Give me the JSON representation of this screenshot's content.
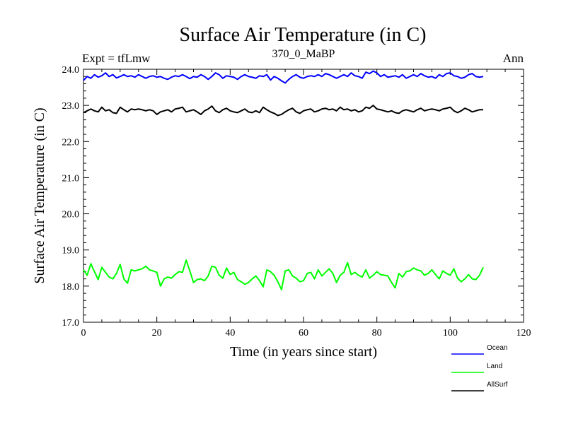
{
  "chart_data": {
    "type": "line",
    "title": "Surface Air Temperature (in C)",
    "subtitle": "370_0_MaBP",
    "expt_label": "Expt = tfLmw",
    "period_label": "Ann",
    "xlabel": "Time (in years since start)",
    "ylabel": "Surface Air Temperature (in C)",
    "xlim": [
      0,
      120
    ],
    "ylim": [
      17.0,
      24.0
    ],
    "x_ticks": [
      0,
      20,
      40,
      60,
      80,
      100,
      120
    ],
    "y_ticks": [
      17.0,
      18.0,
      19.0,
      20.0,
      21.0,
      22.0,
      23.0,
      24.0
    ],
    "x_tick_labels": [
      "0",
      "20",
      "40",
      "60",
      "80",
      "100",
      "120"
    ],
    "y_tick_labels": [
      "17.0",
      "18.0",
      "19.0",
      "20.0",
      "21.0",
      "22.0",
      "23.0",
      "24.0"
    ],
    "grid": false,
    "legend_position": "bottom-right",
    "series": [
      {
        "name": "Ocean",
        "color": "#0000ff",
        "values": [
          23.69,
          23.8,
          23.75,
          23.85,
          23.78,
          23.82,
          23.9,
          23.8,
          23.85,
          23.76,
          23.8,
          23.85,
          23.8,
          23.82,
          23.78,
          23.85,
          23.8,
          23.75,
          23.8,
          23.82,
          23.78,
          23.8,
          23.75,
          23.72,
          23.78,
          23.82,
          23.8,
          23.85,
          23.8,
          23.74,
          23.8,
          23.78,
          23.85,
          23.8,
          23.72,
          23.8,
          23.9,
          23.85,
          23.75,
          23.82,
          23.8,
          23.78,
          23.72,
          23.8,
          23.85,
          23.8,
          23.78,
          23.75,
          23.82,
          23.8,
          23.85,
          23.7,
          23.8,
          23.75,
          23.68,
          23.62,
          23.72,
          23.8,
          23.85,
          23.78,
          23.75,
          23.8,
          23.82,
          23.8,
          23.85,
          23.8,
          23.88,
          23.85,
          23.8,
          23.75,
          23.8,
          23.85,
          23.8,
          23.9,
          23.82,
          23.8,
          23.75,
          23.92,
          23.88,
          23.95,
          23.9,
          23.8,
          23.85,
          23.78,
          23.8,
          23.82,
          23.78,
          23.85,
          23.75,
          23.8,
          23.85,
          23.8,
          23.88,
          23.82,
          23.78,
          23.8,
          23.75,
          23.85,
          23.8,
          23.88,
          23.9,
          23.82,
          23.8,
          23.75,
          23.78,
          23.85,
          23.88,
          23.8,
          23.78,
          23.8
        ]
      },
      {
        "name": "Land",
        "color": "#00ff00",
        "values": [
          18.45,
          18.3,
          18.62,
          18.4,
          18.18,
          18.52,
          18.38,
          18.25,
          18.2,
          18.35,
          18.6,
          18.2,
          18.08,
          18.45,
          18.42,
          18.45,
          18.48,
          18.55,
          18.45,
          18.42,
          18.38,
          18.0,
          18.2,
          18.25,
          18.22,
          18.32,
          18.4,
          18.38,
          18.72,
          18.42,
          18.1,
          18.18,
          18.2,
          18.15,
          18.28,
          18.55,
          18.52,
          18.3,
          18.22,
          18.5,
          18.32,
          18.38,
          18.18,
          18.12,
          18.05,
          18.1,
          18.2,
          18.28,
          18.15,
          17.98,
          18.45,
          18.4,
          18.3,
          18.12,
          17.9,
          18.42,
          18.45,
          18.28,
          18.22,
          18.12,
          18.15,
          18.35,
          18.38,
          18.2,
          18.45,
          18.28,
          18.38,
          18.48,
          18.35,
          18.1,
          18.3,
          18.38,
          18.65,
          18.32,
          18.38,
          18.3,
          18.25,
          18.45,
          18.22,
          18.3,
          18.4,
          18.32,
          18.3,
          18.28,
          18.1,
          17.95,
          18.35,
          18.25,
          18.4,
          18.42,
          18.5,
          18.45,
          18.42,
          18.3,
          18.35,
          18.45,
          18.32,
          18.2,
          18.42,
          18.35,
          18.3,
          18.48,
          18.22,
          18.12,
          18.2,
          18.32,
          18.2,
          18.18,
          18.3,
          18.52
        ]
      },
      {
        "name": "AllSurf",
        "color": "#000000",
        "values": [
          22.8,
          22.85,
          22.9,
          22.85,
          22.82,
          22.95,
          22.85,
          22.88,
          22.8,
          22.78,
          22.95,
          22.88,
          22.82,
          22.9,
          22.88,
          22.9,
          22.88,
          22.85,
          22.88,
          22.85,
          22.75,
          22.82,
          22.85,
          22.88,
          22.82,
          22.9,
          22.92,
          22.95,
          22.82,
          22.85,
          22.88,
          22.82,
          22.75,
          22.85,
          22.9,
          22.98,
          22.85,
          22.8,
          22.88,
          22.92,
          22.85,
          22.82,
          22.8,
          22.85,
          22.9,
          22.82,
          22.8,
          22.85,
          22.8,
          22.95,
          22.88,
          22.82,
          22.78,
          22.72,
          22.75,
          22.82,
          22.88,
          22.92,
          22.82,
          22.78,
          22.85,
          22.88,
          22.9,
          22.82,
          22.85,
          22.9,
          22.92,
          22.88,
          22.9,
          22.85,
          22.95,
          22.88,
          22.9,
          22.85,
          22.88,
          22.82,
          22.85,
          22.95,
          22.92,
          23.0,
          22.9,
          22.88,
          22.85,
          22.82,
          22.85,
          22.8,
          22.78,
          22.85,
          22.88,
          22.85,
          22.82,
          22.88,
          22.92,
          22.85,
          22.88,
          22.9,
          22.88,
          22.85,
          22.9,
          22.92,
          22.95,
          22.85,
          22.8,
          22.85,
          22.92,
          22.88,
          22.82,
          22.85,
          22.88,
          22.88
        ]
      }
    ]
  }
}
